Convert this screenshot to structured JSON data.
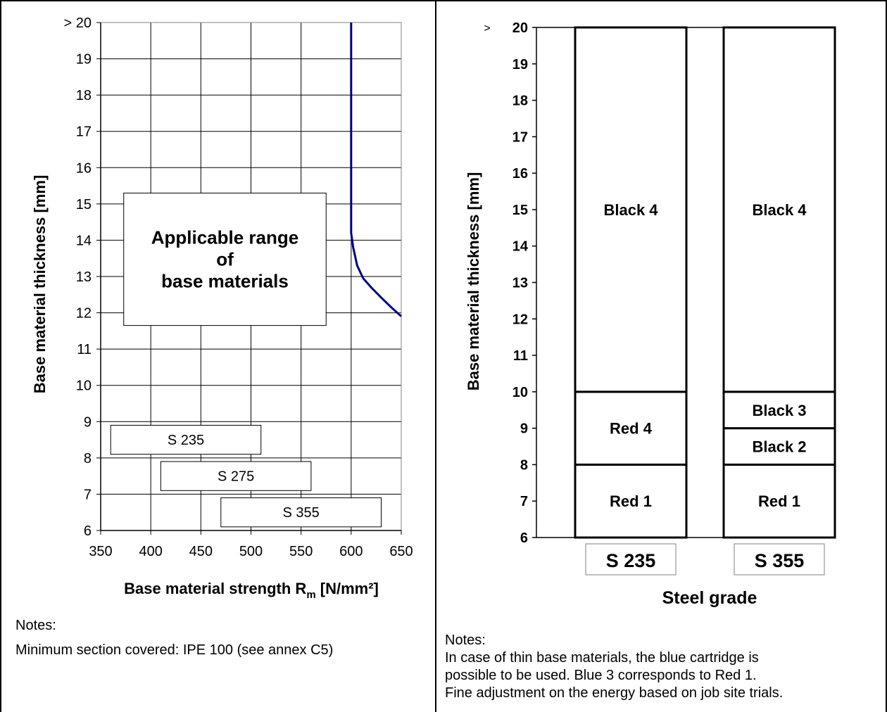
{
  "chart_data": [
    {
      "type": "line",
      "xlabel": "Base material strength R",
      "xlabel_sub": "m",
      "xlabel_tail": " [N/mm²]",
      "ylabel": "Base material thickness [mm]",
      "xlim": [
        350,
        650
      ],
      "ylim": [
        6,
        20
      ],
      "x_ticks": [
        "350",
        "400",
        "450",
        "500",
        "550",
        "600",
        "650"
      ],
      "y_ticks": [
        "6",
        "7",
        "8",
        "9",
        "10",
        "11",
        "12",
        "13",
        "14",
        "15",
        "16",
        "17",
        "18",
        "19",
        "> 20"
      ],
      "grid": true,
      "series": [
        {
          "color": "#000080",
          "points": [
            [
              600,
              20
            ],
            [
              600,
              15
            ],
            [
              600,
              14.2
            ],
            [
              602,
              13.8
            ],
            [
              606,
              13.3
            ],
            [
              612,
              12.95
            ],
            [
              620,
              12.7
            ],
            [
              630,
              12.42
            ],
            [
              640,
              12.15
            ],
            [
              650,
              11.9
            ]
          ]
        }
      ],
      "annotation": {
        "lines": [
          "Applicable range",
          "of",
          "base materials"
        ],
        "x_range": [
          373,
          575
        ],
        "y_range": [
          11.65,
          15.3
        ]
      },
      "range_bars": [
        {
          "label": "S 235",
          "x_range": [
            360,
            510
          ],
          "y_range": [
            8.1,
            8.9
          ]
        },
        {
          "label": "S 275",
          "x_range": [
            410,
            560
          ],
          "y_range": [
            7.1,
            7.9
          ]
        },
        {
          "label": "S 355",
          "x_range": [
            470,
            630
          ],
          "y_range": [
            6.1,
            6.9
          ]
        }
      ]
    },
    {
      "type": "bar",
      "xlabel": "Steel grade",
      "ylabel": "Base material thickness [mm]",
      "ylim": [
        6,
        20
      ],
      "y_ticks": [
        "6",
        "7",
        "8",
        "9",
        "10",
        "11",
        "12",
        "13",
        "14",
        "15",
        "16",
        "17",
        "18",
        "19",
        "20"
      ],
      "y_top_marker": ">",
      "categories": [
        "S 235",
        "S 355"
      ],
      "stacks": [
        {
          "category": "S 235",
          "segments": [
            {
              "label": "Red 1",
              "from": 6,
              "to": 8
            },
            {
              "label": "Red 4",
              "from": 8,
              "to": 10
            },
            {
              "label": "Black 4",
              "from": 10,
              "to": 20
            }
          ]
        },
        {
          "category": "S 355",
          "segments": [
            {
              "label": "Red 1",
              "from": 6,
              "to": 8
            },
            {
              "label": "Black 2",
              "from": 8,
              "to": 9
            },
            {
              "label": "Black 3",
              "from": 9,
              "to": 10
            },
            {
              "label": "Black 4",
              "from": 10,
              "to": 20
            }
          ]
        }
      ]
    }
  ],
  "notes_left": {
    "title": "Notes:",
    "lines": [
      "Minimum section covered: IPE 100 (see annex C5)"
    ]
  },
  "notes_right": {
    "title": "Notes:",
    "lines": [
      "In case of thin base materials, the blue cartridge is",
      "possible to be used. Blue 3 corresponds to Red 1.",
      "Fine adjustment on the energy based on job site trials."
    ]
  }
}
